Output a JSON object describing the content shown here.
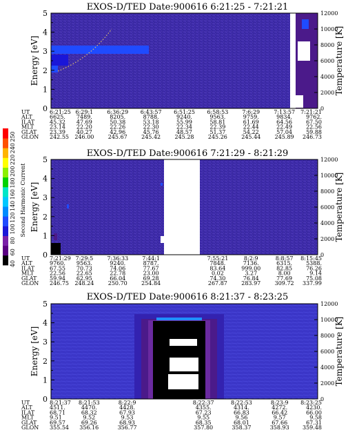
{
  "colorbar": {
    "label": "Second Harmonic Current",
    "ticks": [
      "40",
      "60",
      "80",
      "100",
      "120",
      "140",
      "160",
      "180",
      "200",
      "220",
      "240",
      "250"
    ],
    "colors": [
      "#000000",
      "#5a0082",
      "#7a1fa8",
      "#1a16d8",
      "#1f4bff",
      "#008cff",
      "#00c8ff",
      "#00e6c8",
      "#00d200",
      "#8cf000",
      "#ffff00",
      "#ffb400",
      "#ff5000",
      "#ff0000"
    ]
  },
  "chart_data": [
    {
      "type": "heatmap",
      "title": "EXOS-D/TED   Date:900616   6:21:25 - 7:21:21",
      "ylabel": "Energy [eV]",
      "y2label": "Temperature [K]",
      "yticks": [
        "0",
        "1",
        "2",
        "3",
        "4",
        "5"
      ],
      "y2ticks": [
        "0",
        "2000",
        "4000",
        "6000",
        "8000",
        "10000",
        "12000"
      ],
      "ylim": [
        0,
        5
      ],
      "y2lim": [
        0,
        12000
      ],
      "background_color": "#3c2aa8",
      "gap_rows": [],
      "rows": [
        {
          "name": "UT",
          "values": [
            "6:21:25",
            "6:29:1",
            "6:36:29",
            "6:43:57",
            "6:51:25",
            "6:58:53",
            "7:6:29",
            "7:13:57",
            "7:21:21"
          ]
        },
        {
          "name": "ALT",
          "values": [
            "6625.",
            "7489.",
            "8205.",
            "8788.",
            "9240.",
            "9563.",
            "9759.",
            "9834.",
            "9762."
          ]
        },
        {
          "name": "ILAT",
          "values": [
            "45.32",
            "47.69",
            "50.38",
            "53.18",
            "55.99",
            "58.81",
            "61.69",
            "64.56",
            "67.50"
          ]
        },
        {
          "name": "MLT",
          "values": [
            "23.14",
            "22.20",
            "22.26",
            "22.30",
            "22.34",
            "22.39",
            "22.44",
            "22.49",
            "22.56"
          ]
        },
        {
          "name": "GLAT",
          "values": [
            "23.39",
            "40.27",
            "42.96",
            "45.76",
            "48.57",
            "51.37",
            "54.22",
            "57.04",
            "59.88"
          ]
        },
        {
          "name": "GLON",
          "values": [
            "242.55",
            "246.00",
            "245.67",
            "245.42",
            "245.28",
            "245.26",
            "245.44",
            "245.89",
            "246.73"
          ]
        }
      ]
    },
    {
      "type": "heatmap",
      "title": "EXOS-D/TED   Date:900616   7:21:29 - 8:21:29",
      "ylabel": "Energy [eV]",
      "y2label": "Temperature [K]",
      "yticks": [
        "0",
        "1",
        "2",
        "3",
        "4",
        "5"
      ],
      "y2ticks": [
        "0",
        "2000",
        "4000",
        "6000",
        "8000",
        "10000",
        "12000"
      ],
      "ylim": [
        0,
        5
      ],
      "y2lim": [
        0,
        12000
      ],
      "background_color": "#3c2aa8",
      "gap_rows": [],
      "rows": [
        {
          "name": "UT",
          "values": [
            "7:21:29",
            "7:29:5",
            "7:36:33",
            "7:44:1",
            "",
            "7:55:21",
            "8:2:9",
            "8:8:57",
            "8:15:45"
          ]
        },
        {
          "name": "ALT",
          "values": [
            "9760.",
            "9563.",
            "9240.",
            "8787.",
            "",
            "7848.",
            "7136.",
            "6315.",
            "5388."
          ]
        },
        {
          "name": "ILAT",
          "values": [
            "67.55",
            "70.73",
            "74.06",
            "77.67",
            "",
            "83.64",
            "999.00",
            "82.85",
            "76.26"
          ]
        },
        {
          "name": "MLT",
          "values": [
            "22.56",
            "22.65",
            "22.78",
            "23.00",
            "",
            "0.02",
            "3.27",
            "8.00",
            "9.14"
          ]
        },
        {
          "name": "GLAT",
          "values": [
            "59.94",
            "62.95",
            "66.04",
            "69.28",
            "",
            "74.30",
            "76.84",
            "77.69",
            "75.08"
          ]
        },
        {
          "name": "GLON",
          "values": [
            "246.75",
            "248.24",
            "250.70",
            "254.84",
            "",
            "267.87",
            "283.97",
            "309.72",
            "337.99"
          ]
        }
      ]
    },
    {
      "type": "heatmap",
      "title": "EXOS-D/TED   Date:900616   8:21:37 - 8:23:25",
      "ylabel": "Energy [eV]",
      "y2label": "Temperature [K]",
      "yticks": [
        "0",
        "1",
        "2",
        "3",
        "4",
        "5"
      ],
      "y2ticks": [
        "0",
        "2000",
        "4000",
        "6000",
        "8000",
        "10000",
        "12000"
      ],
      "ylim": [
        0,
        5
      ],
      "y2lim": [
        0,
        12000
      ],
      "background_color": "#3b36c8",
      "gap_rows": [],
      "rows": [
        {
          "name": "UT",
          "values": [
            "8:21:37",
            "8:21:53",
            "8:22:9",
            "",
            "8:22:37",
            "8:22:53",
            "8:23:9",
            "8:23:25"
          ]
        },
        {
          "name": "ALT",
          "values": [
            "4511.",
            "4470.",
            "4428.",
            "",
            "4355.",
            "4314.",
            "4272.",
            "4230."
          ]
        },
        {
          "name": "ILAT",
          "values": [
            "68.71",
            "68.32",
            "67.93",
            "",
            "67.23",
            "66.83",
            "66.42",
            "66.00"
          ]
        },
        {
          "name": "MLT",
          "values": [
            "9.51",
            "9.52",
            "9.53",
            "",
            "9.55",
            "9.56",
            "9.57",
            "9.58"
          ]
        },
        {
          "name": "GLAT",
          "values": [
            "69.57",
            "69.26",
            "68.93",
            "",
            "68.35",
            "68.01",
            "67.66",
            "67.31"
          ]
        },
        {
          "name": "GLON",
          "values": [
            "355.54",
            "356.16",
            "356.77",
            "",
            "357.80",
            "358.37",
            "358.93",
            "359.48"
          ]
        }
      ]
    }
  ]
}
